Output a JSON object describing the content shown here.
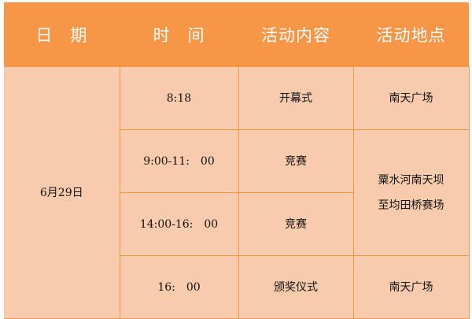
{
  "header": [
    "日　期",
    "时　间",
    "活动内容",
    "活动地点"
  ],
  "date": "6月29日",
  "rows": [
    {
      "time": "8:18",
      "activity": "开幕式"
    },
    {
      "time": "9:00-11:　00",
      "activity": "竞赛"
    },
    {
      "time": "14:00-16:　00",
      "activity": "竞赛"
    },
    {
      "time": "16:　00",
      "activity": "颁奖仪式"
    }
  ],
  "locations": {
    "opening": "南天广场",
    "competition_line1": "粟水河南天坝",
    "competition_line2": "至均田桥赛场",
    "award": "南天广场"
  },
  "colors": {
    "header": "#F79646",
    "body": "#F8CBAD",
    "border": "#F79646"
  }
}
